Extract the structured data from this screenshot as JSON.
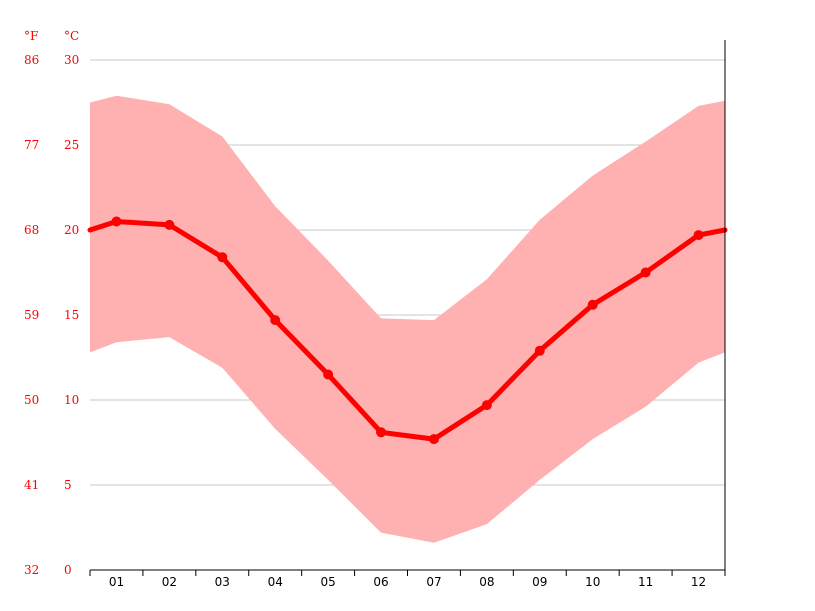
{
  "chart_data": {
    "type": "line",
    "title": "",
    "xlabel": "",
    "ylabel": "",
    "unit_labels": {
      "fahrenheit": "°F",
      "celsius": "°C"
    },
    "categories": [
      "01",
      "02",
      "03",
      "04",
      "05",
      "06",
      "07",
      "08",
      "09",
      "10",
      "11",
      "12"
    ],
    "y_ticks_celsius": [
      "30",
      "25",
      "20",
      "15",
      "10",
      "5",
      "0"
    ],
    "y_ticks_fahrenheit": [
      "86",
      "77",
      "68",
      "59",
      "50",
      "41",
      "32"
    ],
    "ylim": [
      0,
      30
    ],
    "grid": true,
    "series": [
      {
        "values": [
          20.5,
          20.3,
          18.4,
          14.7,
          11.5,
          8.1,
          7.7,
          9.7,
          12.9,
          15.6,
          17.5,
          19.7
        ]
      }
    ],
    "range_band": {
      "upper": [
        27.9,
        27.4,
        25.5,
        21.4,
        18.2,
        14.8,
        14.7,
        17.1,
        20.6,
        23.2,
        25.2,
        27.3
      ],
      "lower": [
        13.4,
        13.7,
        11.9,
        8.3,
        5.3,
        2.2,
        1.6,
        2.7,
        5.3,
        7.7,
        9.6,
        12.2
      ],
      "start": {
        "upper": 27.5,
        "mean": 20.0,
        "lower": 12.8
      },
      "end": {
        "upper": 27.6,
        "mean": 20.0,
        "lower": 12.8
      }
    },
    "colors": {
      "line": "#ff0000",
      "band": "#ffb0b0",
      "grid": "#c8c8c8",
      "axis": "#000000",
      "tick_text_y": "#ff0000",
      "tick_text_x": "#000000"
    }
  }
}
